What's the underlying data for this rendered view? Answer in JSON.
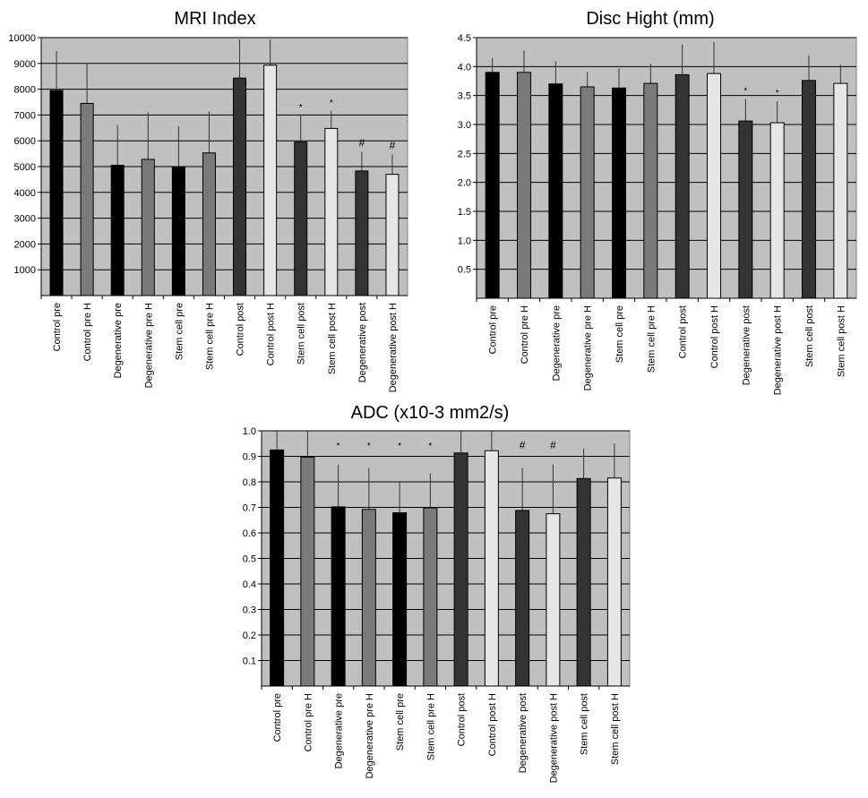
{
  "chart_data": [
    {
      "id": "mri",
      "type": "bar",
      "title": "MRI Index",
      "xlabel": "",
      "ylabel": "",
      "ylim": [
        0,
        10000
      ],
      "yticks": [
        1000,
        2000,
        3000,
        4000,
        5000,
        6000,
        7000,
        8000,
        9000,
        10000
      ],
      "ytick_labels": [
        "1000",
        "2000",
        "3000",
        "4000",
        "5000",
        "6000",
        "7000",
        "8000",
        "9000",
        "10000"
      ],
      "grid": true,
      "background": "#c0c0c0",
      "categories": [
        "Control pre",
        "Control pre H",
        "Degenerative pre",
        "Degenerative pre H",
        "Stem cell pre",
        "Stem cell pre H",
        "Control post",
        "Control post H",
        "Stem cell post",
        "Stem cell post H",
        "Degenerative post",
        "Degenerative post H"
      ],
      "values": [
        7950,
        7450,
        5050,
        5280,
        5000,
        5530,
        8430,
        8930,
        5950,
        6480,
        4830,
        4700
      ],
      "error_upper": [
        9480,
        9000,
        6620,
        7100,
        6560,
        7140,
        9930,
        9930,
        6980,
        7160,
        5580,
        5470
      ],
      "colors": [
        "#000000",
        "#7a7a7a",
        "#000000",
        "#7a7a7a",
        "#000000",
        "#7a7a7a",
        "#333333",
        "#e6e6e6",
        "#333333",
        "#e6e6e6",
        "#333333",
        "#e6e6e6"
      ],
      "annotations": [
        "",
        "",
        "",
        "",
        "",
        "",
        "",
        "",
        "*",
        "*",
        "#",
        "#"
      ]
    },
    {
      "id": "disc",
      "type": "bar",
      "title": "Disc Hight (mm)",
      "xlabel": "",
      "ylabel": "",
      "ylim": [
        0,
        4.5
      ],
      "yticks": [
        0.5,
        1.0,
        1.5,
        2.0,
        2.5,
        3.0,
        3.5,
        4.0,
        4.5
      ],
      "ytick_labels": [
        "0.5",
        "1.0",
        "1.5",
        "2.0",
        "2.5",
        "3.0",
        "3.5",
        "4.0",
        "4.5"
      ],
      "grid": true,
      "background": "#c0c0c0",
      "categories": [
        "Control pre",
        "Control pre H",
        "Degenerative pre",
        "Degenerative pre H",
        "Stem cell pre",
        "Stem cell pre H",
        "Control post",
        "Control post H",
        "Degenerative post",
        "Degenerative post H",
        "Stem cell post",
        "Stem cell post H"
      ],
      "values": [
        3.9,
        3.9,
        3.7,
        3.65,
        3.63,
        3.71,
        3.86,
        3.88,
        3.06,
        3.03,
        3.76,
        3.71
      ],
      "error_upper": [
        4.15,
        4.28,
        4.09,
        3.91,
        3.97,
        4.05,
        4.38,
        4.42,
        3.44,
        3.4,
        4.19,
        4.03
      ],
      "colors": [
        "#000000",
        "#7a7a7a",
        "#000000",
        "#7a7a7a",
        "#000000",
        "#7a7a7a",
        "#333333",
        "#e6e6e6",
        "#333333",
        "#e6e6e6",
        "#333333",
        "#e6e6e6"
      ],
      "annotations": [
        "",
        "",
        "",
        "",
        "",
        "",
        "",
        "",
        "*",
        "*",
        "",
        ""
      ]
    },
    {
      "id": "adc",
      "type": "bar",
      "title": "ADC (x10-3 mm2/s)",
      "xlabel": "",
      "ylabel": "",
      "ylim": [
        0,
        1.0
      ],
      "yticks": [
        0.1,
        0.2,
        0.3,
        0.4,
        0.5,
        0.6,
        0.7,
        0.8,
        0.9,
        1.0
      ],
      "ytick_labels": [
        "0.1",
        "0.2",
        "0.3",
        "0.4",
        "0.5",
        "0.6",
        "0.7",
        "0.8",
        "0.9",
        "1.0"
      ],
      "grid": true,
      "background": "#c0c0c0",
      "categories": [
        "Control pre",
        "Control pre H",
        "Degenerative pre",
        "Degenerative pre H",
        "Stem cell pre",
        "Stem cell pre H",
        "Control post",
        "Control post H",
        "Degenerative post",
        "Degenerative post H",
        "Stem cell post",
        "Stem cell post H"
      ],
      "values": [
        0.925,
        0.897,
        0.702,
        0.692,
        0.679,
        0.698,
        0.913,
        0.922,
        0.688,
        0.675,
        0.813,
        0.815
      ],
      "error_upper": [
        1.0,
        1.0,
        0.866,
        0.855,
        0.8,
        0.833,
        1.0,
        1.0,
        0.855,
        0.868,
        0.93,
        0.95
      ],
      "colors": [
        "#000000",
        "#7a7a7a",
        "#000000",
        "#7a7a7a",
        "#000000",
        "#7a7a7a",
        "#333333",
        "#e6e6e6",
        "#333333",
        "#e6e6e6",
        "#333333",
        "#e6e6e6"
      ],
      "annotations": [
        "",
        "",
        "*",
        "*",
        "*",
        "*",
        "",
        "",
        "#",
        "#",
        "",
        ""
      ]
    }
  ]
}
